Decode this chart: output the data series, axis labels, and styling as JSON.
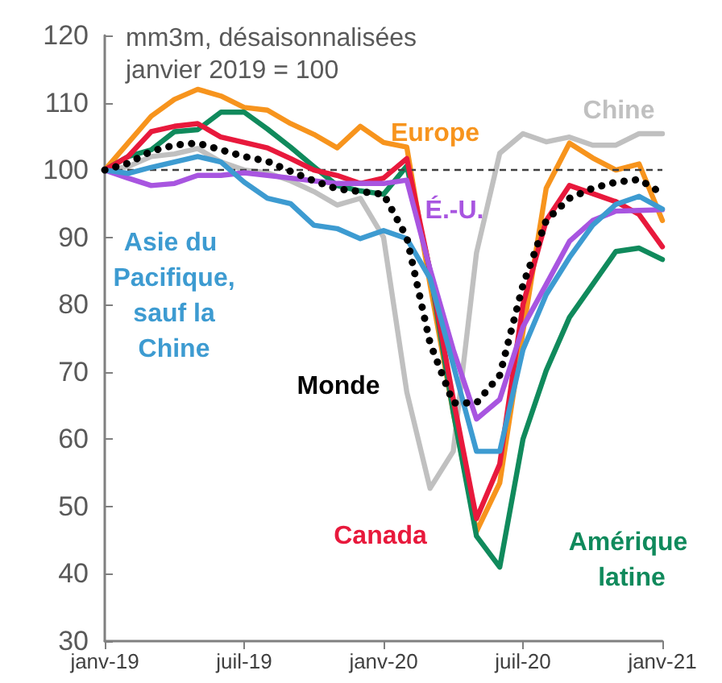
{
  "chart_data": {
    "type": "line",
    "categories": [
      "janv-19",
      null,
      null,
      null,
      null,
      null,
      "juil-19",
      null,
      null,
      null,
      null,
      null,
      "janv-20",
      null,
      null,
      null,
      null,
      null,
      "juil-20",
      null,
      null,
      null,
      null,
      null,
      "janv-21"
    ],
    "ylim": [
      30,
      120
    ],
    "yticks": [
      30,
      40,
      50,
      60,
      70,
      80,
      90,
      100,
      110,
      120
    ],
    "annotations": [
      "mm3m, désaisonnalisées",
      "janvier 2019 = 100"
    ],
    "ref_lines": [
      {
        "axis": "y",
        "value": 100,
        "color": "#404040",
        "line_style": "dashed"
      }
    ],
    "grid": false,
    "legend": false,
    "marker": "none",
    "series": [
      {
        "name": "Chine",
        "color": "#c0c0c0",
        "line_style": "solid",
        "values": [
          100,
          100.5,
          102,
          102.4,
          103.2,
          101.2,
          100,
          99.6,
          98.4,
          96.8,
          94.8,
          95.8,
          90,
          67,
          52.7,
          58.2,
          87.7,
          102.5,
          105.4,
          104.2,
          104.9,
          103.7,
          103.7,
          105.4,
          105.4
        ]
      },
      {
        "name": "Europe",
        "color": "#f7941d",
        "line_style": "solid",
        "values": [
          100,
          104,
          108,
          110.5,
          112,
          111,
          109.3,
          108.9,
          106.9,
          105.3,
          103.3,
          106.5,
          104.1,
          103.4,
          83,
          64,
          46.3,
          53.5,
          76,
          97.3,
          104,
          101.8,
          100,
          100.9,
          92.5
        ]
      },
      {
        "name": "Amérique latine",
        "color": "#108a5c",
        "line_style": "solid",
        "values": [
          100,
          102,
          103,
          105.7,
          106,
          108.6,
          108.6,
          106.1,
          103.4,
          100.5,
          97.7,
          96.9,
          96.4,
          100.6,
          85,
          64,
          45.6,
          41,
          60,
          70.2,
          78.1,
          83,
          87.9,
          88.4,
          86.7
        ]
      },
      {
        "name": "Canada",
        "color": "#e8193c",
        "line_style": "solid",
        "values": [
          100,
          102,
          105.7,
          106.5,
          106.9,
          104.9,
          104.1,
          103.3,
          101.7,
          100,
          99.2,
          98,
          98.8,
          101.7,
          85,
          66,
          48.2,
          56.3,
          80,
          92.5,
          97.7,
          96.5,
          95.3,
          93.4,
          88.6
        ]
      },
      {
        "name": "É.-U.",
        "color": "#a855e0",
        "line_style": "solid",
        "values": [
          100,
          98.8,
          97.7,
          98,
          99.2,
          99.2,
          99.6,
          99.2,
          98.8,
          98.4,
          98,
          98,
          98,
          98.5,
          85.3,
          73.3,
          63,
          65.9,
          76.7,
          83,
          89.4,
          92.5,
          93.9,
          94,
          94.1
        ]
      },
      {
        "name": "Asie du Pacifique, sauf la Chine",
        "color": "#3d9bd1",
        "line_style": "solid",
        "values": [
          100,
          99.5,
          100.4,
          101.2,
          102,
          101.2,
          98.2,
          95.8,
          95,
          91.8,
          91.3,
          89.8,
          91,
          89.8,
          83.9,
          71,
          58.2,
          58.2,
          73.3,
          81.5,
          87,
          91.8,
          94.9,
          96.1,
          94.2
        ]
      },
      {
        "name": "Monde",
        "color": "#000000",
        "line_style": "dotted",
        "values": [
          100,
          101,
          102.8,
          103.7,
          104,
          103,
          102,
          101.3,
          99.8,
          98.4,
          97.2,
          96.8,
          96.4,
          90,
          74.3,
          65.4,
          65.4,
          69.5,
          82.9,
          92.5,
          95.8,
          97.3,
          98.2,
          98.6,
          96.5
        ]
      }
    ]
  }
}
